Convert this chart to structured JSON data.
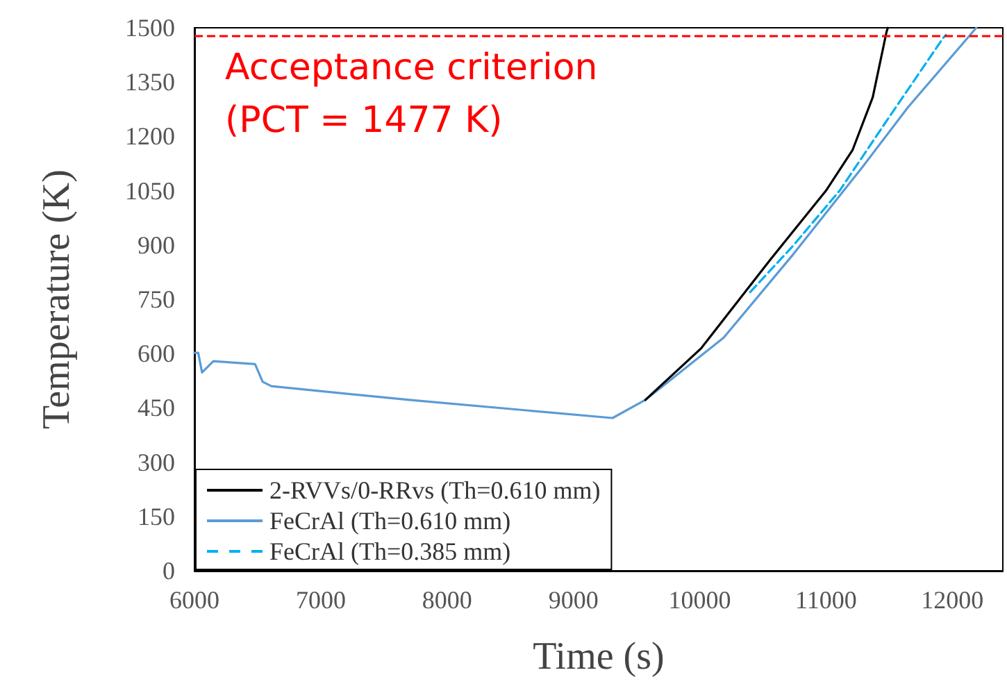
{
  "chart_data": {
    "type": "line",
    "xlabel": "Time (s)",
    "ylabel": "Temperature (K)",
    "xlim": [
      6000,
      12400
    ],
    "xticks": [
      6000,
      7000,
      8000,
      9000,
      10000,
      11000,
      12000
    ],
    "ylim": [
      0,
      1500
    ],
    "yticks": [
      0,
      150,
      300,
      450,
      600,
      750,
      900,
      1050,
      1200,
      1350,
      1500
    ],
    "grid": false,
    "legend": "bottom left",
    "marker": "none",
    "ref_lines": [
      {
        "axis": "y",
        "value": 1477,
        "label": "Acceptance criterion\n(PCT = 1477 K)",
        "color": "#ff0000",
        "line_style": "dashed"
      }
    ],
    "series": [
      {
        "name": "2-RVVs/0-RRvs (Th=0.610 mm)",
        "color": "#000000",
        "line_style": "solid",
        "x": [
          9570,
          10010,
          10560,
          11000,
          11210,
          11370,
          11480,
          11490
        ],
        "values": [
          472,
          614,
          860,
          1050,
          1162,
          1308,
          1490,
          1500
        ]
      },
      {
        "name": "FeCrAl (Th=0.610 mm)",
        "color": "#5b9bd5",
        "line_style": "solid",
        "x": [
          6000,
          6030,
          6060,
          6150,
          6480,
          6540,
          6610,
          7700,
          9310,
          9570,
          10190,
          10740,
          11290,
          11650,
          12170,
          12190
        ],
        "values": [
          602,
          602,
          548,
          579,
          571,
          522,
          510,
          472,
          422,
          472,
          644,
          874,
          1116,
          1281,
          1492,
          1500
        ]
      },
      {
        "name": "FeCrAl (Th=0.385 mm)",
        "color": "#00b0f0",
        "line_style": "dashed",
        "x": [
          10400,
          10740,
          11110,
          11480,
          11930,
          11950
        ],
        "values": [
          770,
          898,
          1051,
          1243,
          1473,
          1480
        ]
      }
    ]
  }
}
